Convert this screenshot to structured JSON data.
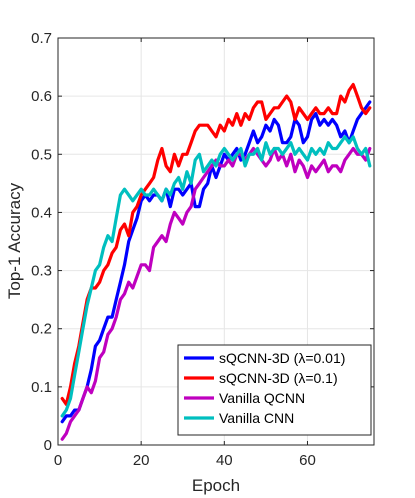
{
  "chart_data": {
    "type": "line",
    "xlabel": "Epoch",
    "ylabel": "Top-1 Accuracy",
    "xlim": [
      0,
      76
    ],
    "ylim": [
      0,
      0.7
    ],
    "xticks": [
      0,
      20,
      40,
      60
    ],
    "yticks": [
      0,
      0.1,
      0.2,
      0.3,
      0.4,
      0.5,
      0.6,
      0.7
    ],
    "xtick_labels": [
      "0",
      "20",
      "40",
      "60"
    ],
    "ytick_labels": [
      "0",
      "0.1",
      "0.2",
      "0.3",
      "0.4",
      "0.5",
      "0.6",
      "0.7"
    ],
    "grid": true,
    "legend_position": "bottom-right",
    "series": [
      {
        "name": "sQCNN-3D (λ=0.01)",
        "color": "#0000ff",
        "x": [
          1,
          2,
          3,
          4,
          5,
          6,
          7,
          8,
          9,
          10,
          11,
          12,
          13,
          14,
          15,
          16,
          17,
          18,
          19,
          20,
          21,
          22,
          23,
          24,
          25,
          26,
          27,
          28,
          29,
          30,
          31,
          32,
          33,
          34,
          35,
          36,
          37,
          38,
          39,
          40,
          41,
          42,
          43,
          44,
          45,
          46,
          47,
          48,
          49,
          50,
          51,
          52,
          53,
          54,
          55,
          56,
          57,
          58,
          59,
          60,
          61,
          62,
          63,
          64,
          65,
          66,
          67,
          68,
          69,
          70,
          71,
          72,
          73,
          74,
          75
        ],
        "y": [
          0.04,
          0.05,
          0.05,
          0.06,
          0.06,
          0.08,
          0.1,
          0.13,
          0.17,
          0.18,
          0.2,
          0.22,
          0.22,
          0.25,
          0.28,
          0.31,
          0.35,
          0.37,
          0.39,
          0.42,
          0.43,
          0.42,
          0.43,
          0.43,
          0.42,
          0.44,
          0.41,
          0.44,
          0.44,
          0.43,
          0.44,
          0.45,
          0.41,
          0.41,
          0.44,
          0.45,
          0.48,
          0.46,
          0.48,
          0.5,
          0.49,
          0.5,
          0.51,
          0.49,
          0.5,
          0.52,
          0.54,
          0.52,
          0.53,
          0.55,
          0.54,
          0.56,
          0.55,
          0.52,
          0.52,
          0.53,
          0.56,
          0.55,
          0.52,
          0.53,
          0.56,
          0.57,
          0.55,
          0.56,
          0.55,
          0.56,
          0.55,
          0.53,
          0.54,
          0.52,
          0.54,
          0.56,
          0.57,
          0.58,
          0.59
        ]
      },
      {
        "name": "sQCNN-3D (λ=0.1)",
        "color": "#ff0000",
        "x": [
          1,
          2,
          3,
          4,
          5,
          6,
          7,
          8,
          9,
          10,
          11,
          12,
          13,
          14,
          15,
          16,
          17,
          18,
          19,
          20,
          21,
          22,
          23,
          24,
          25,
          26,
          27,
          28,
          29,
          30,
          31,
          32,
          33,
          34,
          35,
          36,
          37,
          38,
          39,
          40,
          41,
          42,
          43,
          44,
          45,
          46,
          47,
          48,
          49,
          50,
          51,
          52,
          53,
          54,
          55,
          56,
          57,
          58,
          59,
          60,
          61,
          62,
          63,
          64,
          65,
          66,
          67,
          68,
          69,
          70,
          71,
          72,
          73,
          74,
          75
        ],
        "y": [
          0.08,
          0.07,
          0.1,
          0.14,
          0.17,
          0.21,
          0.25,
          0.27,
          0.27,
          0.28,
          0.3,
          0.31,
          0.33,
          0.34,
          0.37,
          0.38,
          0.36,
          0.4,
          0.41,
          0.43,
          0.44,
          0.45,
          0.46,
          0.49,
          0.51,
          0.48,
          0.47,
          0.5,
          0.48,
          0.5,
          0.5,
          0.52,
          0.54,
          0.55,
          0.55,
          0.55,
          0.54,
          0.53,
          0.55,
          0.54,
          0.56,
          0.55,
          0.57,
          0.55,
          0.57,
          0.56,
          0.58,
          0.59,
          0.59,
          0.56,
          0.57,
          0.58,
          0.58,
          0.59,
          0.6,
          0.59,
          0.56,
          0.58,
          0.57,
          0.56,
          0.57,
          0.58,
          0.57,
          0.57,
          0.58,
          0.57,
          0.57,
          0.6,
          0.59,
          0.61,
          0.62,
          0.6,
          0.58,
          0.57,
          0.58
        ]
      },
      {
        "name": "Vanilla QCNN",
        "color": "#bf00bf",
        "x": [
          1,
          2,
          3,
          4,
          5,
          6,
          7,
          8,
          9,
          10,
          11,
          12,
          13,
          14,
          15,
          16,
          17,
          18,
          19,
          20,
          21,
          22,
          23,
          24,
          25,
          26,
          27,
          28,
          29,
          30,
          31,
          32,
          33,
          34,
          35,
          36,
          37,
          38,
          39,
          40,
          41,
          42,
          43,
          44,
          45,
          46,
          47,
          48,
          49,
          50,
          51,
          52,
          53,
          54,
          55,
          56,
          57,
          58,
          59,
          60,
          61,
          62,
          63,
          64,
          65,
          66,
          67,
          68,
          69,
          70,
          71,
          72,
          73,
          74,
          75
        ],
        "y": [
          0.01,
          0.02,
          0.04,
          0.05,
          0.06,
          0.08,
          0.1,
          0.09,
          0.11,
          0.15,
          0.16,
          0.19,
          0.2,
          0.22,
          0.25,
          0.26,
          0.28,
          0.27,
          0.29,
          0.31,
          0.31,
          0.3,
          0.34,
          0.35,
          0.36,
          0.35,
          0.38,
          0.4,
          0.39,
          0.38,
          0.4,
          0.41,
          0.44,
          0.45,
          0.46,
          0.47,
          0.48,
          0.49,
          0.48,
          0.48,
          0.49,
          0.48,
          0.5,
          0.5,
          0.49,
          0.5,
          0.51,
          0.5,
          0.49,
          0.48,
          0.49,
          0.51,
          0.49,
          0.5,
          0.48,
          0.5,
          0.47,
          0.49,
          0.48,
          0.46,
          0.48,
          0.47,
          0.48,
          0.49,
          0.47,
          0.48,
          0.48,
          0.47,
          0.49,
          0.5,
          0.51,
          0.5,
          0.5,
          0.49,
          0.51
        ]
      },
      {
        "name": "Vanilla CNN",
        "color": "#00bfbf",
        "x": [
          1,
          2,
          3,
          4,
          5,
          6,
          7,
          8,
          9,
          10,
          11,
          12,
          13,
          14,
          15,
          16,
          17,
          18,
          19,
          20,
          21,
          22,
          23,
          24,
          25,
          26,
          27,
          28,
          29,
          30,
          31,
          32,
          33,
          34,
          35,
          36,
          37,
          38,
          39,
          40,
          41,
          42,
          43,
          44,
          45,
          46,
          47,
          48,
          49,
          50,
          51,
          52,
          53,
          54,
          55,
          56,
          57,
          58,
          59,
          60,
          61,
          62,
          63,
          64,
          65,
          66,
          67,
          68,
          69,
          70,
          71,
          72,
          73,
          74,
          75
        ],
        "y": [
          0.05,
          0.06,
          0.08,
          0.12,
          0.16,
          0.2,
          0.24,
          0.27,
          0.3,
          0.31,
          0.34,
          0.36,
          0.35,
          0.39,
          0.43,
          0.44,
          0.43,
          0.42,
          0.43,
          0.44,
          0.43,
          0.43,
          0.44,
          0.43,
          0.42,
          0.44,
          0.43,
          0.45,
          0.46,
          0.44,
          0.47,
          0.45,
          0.49,
          0.5,
          0.47,
          0.48,
          0.49,
          0.48,
          0.5,
          0.51,
          0.5,
          0.49,
          0.5,
          0.51,
          0.48,
          0.5,
          0.5,
          0.51,
          0.49,
          0.52,
          0.5,
          0.51,
          0.51,
          0.5,
          0.51,
          0.52,
          0.5,
          0.51,
          0.5,
          0.49,
          0.51,
          0.5,
          0.51,
          0.5,
          0.52,
          0.51,
          0.51,
          0.52,
          0.53,
          0.52,
          0.53,
          0.51,
          0.5,
          0.51,
          0.48
        ]
      }
    ]
  }
}
